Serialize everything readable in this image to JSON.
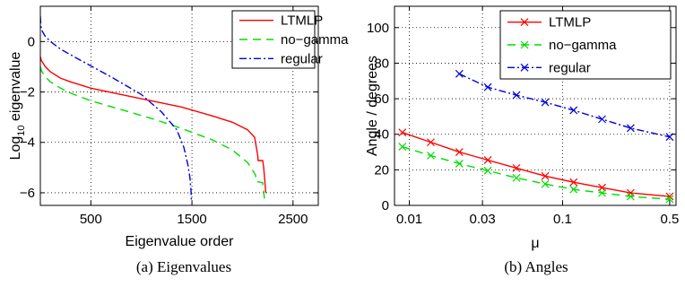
{
  "chart_data": [
    {
      "type": "line",
      "caption": "(a) Eigenvalues",
      "xlabel": "Eigenvalue order",
      "ylabel_main": "Log",
      "ylabel_sub": "10",
      "ylabel_rest": " eigenvalue",
      "xlim": [
        0,
        2750
      ],
      "ylim": [
        -6.5,
        1.4
      ],
      "xticks": [
        500,
        1500,
        2500
      ],
      "xtick_labels": [
        "500",
        "1500",
        "2500"
      ],
      "yticks": [
        0,
        -2,
        -4,
        -6
      ],
      "ytick_labels": [
        "0",
        "−2",
        "−4",
        "−6"
      ],
      "grid": true,
      "legend_position": "top-right",
      "series": [
        {
          "name": "LTMLP",
          "color": "#ff0000",
          "dash": "solid",
          "x": [
            0,
            10,
            50,
            100,
            200,
            300,
            500,
            800,
            1100,
            1400,
            1700,
            1900,
            2050,
            2120,
            2150,
            2155,
            2200,
            2210,
            2220,
            2230
          ],
          "y": [
            -0.6,
            -0.75,
            -1.0,
            -1.2,
            -1.45,
            -1.6,
            -1.85,
            -2.1,
            -2.35,
            -2.6,
            -2.95,
            -3.2,
            -3.5,
            -3.8,
            -4.5,
            -4.72,
            -4.72,
            -5.0,
            -5.5,
            -6.0
          ]
        },
        {
          "name": "no−gamma",
          "color": "#00dd00",
          "dash": "9 6",
          "x": [
            0,
            10,
            50,
            100,
            200,
            300,
            500,
            800,
            1100,
            1400,
            1700,
            1900,
            2050,
            2100,
            2130,
            2135,
            2200,
            2210,
            2220
          ],
          "y": [
            -1.0,
            -1.15,
            -1.4,
            -1.6,
            -1.85,
            -2.05,
            -2.35,
            -2.7,
            -3.05,
            -3.45,
            -3.9,
            -4.3,
            -4.8,
            -5.1,
            -5.3,
            -5.55,
            -5.6,
            -6.0,
            -6.3
          ]
        },
        {
          "name": "regular",
          "color": "#0000dd",
          "dash": "8 3 2 3",
          "x": [
            0,
            5,
            20,
            50,
            100,
            200,
            400,
            700,
            1000,
            1200,
            1350,
            1420,
            1460,
            1480,
            1490,
            1495
          ],
          "y": [
            1.0,
            0.6,
            0.4,
            0.2,
            0.0,
            -0.3,
            -0.75,
            -1.4,
            -2.1,
            -2.8,
            -3.5,
            -4.2,
            -4.9,
            -5.4,
            -5.9,
            -6.3
          ]
        }
      ]
    },
    {
      "type": "line",
      "caption": "(b) Angles",
      "xlabel": "μ",
      "ylabel": "Angle / degrees",
      "xscale": "log",
      "xlim": [
        0.008,
        0.55
      ],
      "ylim": [
        0,
        112
      ],
      "xticks": [
        0.01,
        0.03,
        0.1,
        0.5
      ],
      "xtick_labels": [
        "0.01",
        "0.03",
        "0.1",
        "0.5"
      ],
      "yticks": [
        0,
        20,
        40,
        60,
        80,
        100
      ],
      "ytick_labels": [
        "0",
        "20",
        "40",
        "60",
        "80",
        "100"
      ],
      "grid": true,
      "legend_position": "top-right",
      "series": [
        {
          "name": "LTMLP",
          "color": "#ff0000",
          "dash": "solid",
          "marker": "x",
          "x": [
            0.009,
            0.0138,
            0.0212,
            0.0325,
            0.05,
            0.077,
            0.118,
            0.181,
            0.278,
            0.5
          ],
          "y": [
            41,
            35.5,
            30,
            25.5,
            21,
            16.5,
            13,
            10,
            7,
            5
          ]
        },
        {
          "name": "no−gamma",
          "color": "#00dd00",
          "dash": "9 6",
          "marker": "x",
          "x": [
            0.009,
            0.0138,
            0.0212,
            0.0325,
            0.05,
            0.077,
            0.118,
            0.181,
            0.278,
            0.5
          ],
          "y": [
            33,
            28,
            23.5,
            19.5,
            15.5,
            12,
            9,
            7,
            5,
            3.5
          ]
        },
        {
          "name": "regular",
          "color": "#0000dd",
          "dash": "8 3 2 3",
          "marker": "x",
          "x": [
            0.0212,
            0.0325,
            0.05,
            0.077,
            0.118,
            0.181,
            0.278,
            0.5
          ],
          "y": [
            74,
            66.5,
            62,
            58,
            53.5,
            48.5,
            43.5,
            38.5
          ]
        }
      ]
    }
  ]
}
